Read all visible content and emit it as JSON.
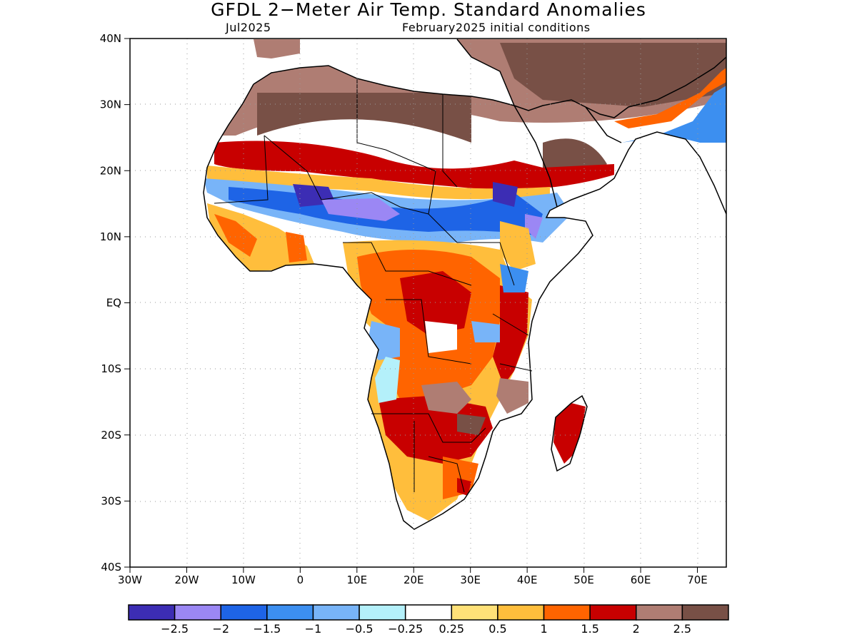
{
  "title": "GFDL 2−Meter Air Temp. Standard Anomalies",
  "valid_month": "Jul2025",
  "init_conditions": "February2025 initial conditions",
  "map": {
    "lat_labels": [
      "40N",
      "30N",
      "20N",
      "10N",
      "EQ",
      "10S",
      "20S",
      "30S",
      "40S"
    ],
    "lon_labels": [
      "30W",
      "20W",
      "10W",
      "0",
      "10E",
      "20E",
      "30E",
      "40E",
      "50E",
      "60E",
      "70E"
    ]
  },
  "colorbar": {
    "colors": [
      "#3c2db4",
      "#9b87f4",
      "#1e64e6",
      "#3c8ff0",
      "#78b4f8",
      "#b4f0fa",
      "#ffffff",
      "#ffe178",
      "#ffbe3c",
      "#ff6400",
      "#c80000",
      "#af7d73",
      "#785046"
    ],
    "labels": [
      "−2.5",
      "−2",
      "−1.5",
      "−1",
      "−0.5",
      "−0.25",
      "0.25",
      "0.5",
      "1",
      "1.5",
      "2",
      "2.5"
    ]
  }
}
